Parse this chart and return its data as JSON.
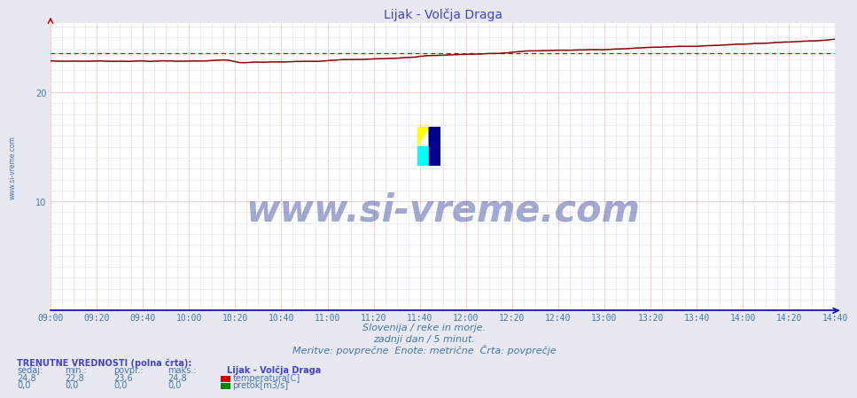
{
  "title": "Lijak - Volčja Draga",
  "title_color": "#4444cc",
  "title_fontsize": 10,
  "bg_color": "#e8e8f0",
  "plot_bg_color": "#ffffff",
  "x_tick_labels": [
    "09:00",
    "09:20",
    "09:40",
    "10:00",
    "10:20",
    "10:40",
    "11:00",
    "11:20",
    "11:40",
    "12:00",
    "12:20",
    "12:40",
    "13:00",
    "13:20",
    "13:40",
    "14:00",
    "14:20",
    "14:40"
  ],
  "x_tick_minutes": [
    0,
    20,
    40,
    60,
    80,
    100,
    120,
    140,
    160,
    180,
    200,
    220,
    240,
    260,
    280,
    300,
    320,
    340
  ],
  "t_total": 340,
  "y_min": 0,
  "y_max": 26.3,
  "y_ticks": [
    10,
    20
  ],
  "axis_color": "#0000bb",
  "tick_color": "#4477aa",
  "tick_fontsize": 7,
  "temp_line_color": "#880000",
  "temp_dashed_color": "#cc0000",
  "temp_avg": 23.6,
  "subtitle1": "Slovenija / reke in morje.",
  "subtitle2": "zadnji dan / 5 minut.",
  "subtitle3": "Meritve: povprečne  Enote: metrične  Črta: povprečje",
  "subtitle_color": "#4477aa",
  "subtitle_fontsize": 8,
  "footer_title_color": "#4444cc",
  "footer_color": "#4477aa",
  "watermark_text": "www.si-vreme.com",
  "watermark_color": "#334499",
  "watermark_fontsize": 30,
  "ylabel_text": "www.si-vreme.com",
  "ylabel_color": "#4477aa",
  "ylabel_fontsize": 5.5,
  "red_vgrid_color": "#ffbbbb",
  "red_hgrid_color": "#ffbbbb",
  "light_grid_color": "#e0e0f0"
}
